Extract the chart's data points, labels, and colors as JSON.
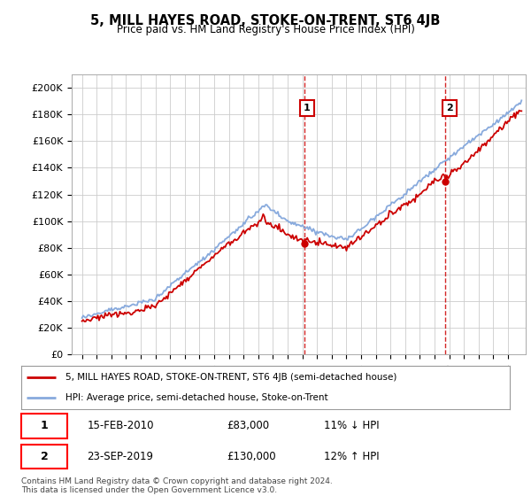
{
  "title": "5, MILL HAYES ROAD, STOKE-ON-TRENT, ST6 4JB",
  "subtitle": "Price paid vs. HM Land Registry's House Price Index (HPI)",
  "ylabel_ticks": [
    "£0",
    "£20K",
    "£40K",
    "£60K",
    "£80K",
    "£100K",
    "£120K",
    "£140K",
    "£160K",
    "£180K",
    "£200K"
  ],
  "ytick_values": [
    0,
    20000,
    40000,
    60000,
    80000,
    100000,
    120000,
    140000,
    160000,
    180000,
    200000
  ],
  "ylim": [
    0,
    210000
  ],
  "t1_year": 2010.12,
  "t1_price": 83000,
  "t2_year": 2019.73,
  "t2_price": 130000,
  "property_line_color": "#cc0000",
  "hpi_line_color": "#88aadd",
  "vline_color": "#cc0000",
  "legend_property": "5, MILL HAYES ROAD, STOKE-ON-TRENT, ST6 4JB (semi-detached house)",
  "legend_hpi": "HPI: Average price, semi-detached house, Stoke-on-Trent",
  "footnote": "Contains HM Land Registry data © Crown copyright and database right 2024.\nThis data is licensed under the Open Government Licence v3.0.",
  "background_color": "#ffffff",
  "grid_color": "#cccccc"
}
